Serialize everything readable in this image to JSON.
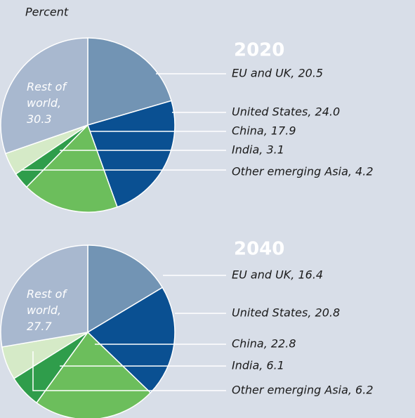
{
  "chart_data": [
    {
      "type": "pie",
      "title": "2020",
      "subtitle": "Percent",
      "categories": [
        "EU and UK",
        "United States",
        "China",
        "India",
        "Other emerging Asia",
        "Rest of world"
      ],
      "values": [
        20.5,
        24.0,
        17.9,
        3.1,
        4.2,
        30.3
      ],
      "value_labels": [
        "EU and UK, 20.5",
        "United States, 24.0",
        "China, 17.9",
        "India, 3.1",
        "Other emerging Asia, 4.2",
        "Rest of world, 30.3"
      ],
      "colors": [
        "#7294b4",
        "#0a5092",
        "#6cbe5c",
        "#2f9d4b",
        "#d5eac7",
        "#a8b8cf"
      ]
    },
    {
      "type": "pie",
      "title": "2040",
      "categories": [
        "EU and UK",
        "United States",
        "China",
        "India",
        "Other emerging Asia",
        "Rest of world"
      ],
      "values": [
        16.4,
        20.8,
        22.8,
        6.1,
        6.2,
        27.7
      ],
      "value_labels": [
        "EU and UK, 16.4",
        "United States, 20.8",
        "China, 22.8",
        "India, 6.1",
        "Other emerging Asia, 6.2",
        "Rest of world, 27.7"
      ],
      "colors": [
        "#7294b4",
        "#0a5092",
        "#6cbe5c",
        "#2f9d4b",
        "#d5eac7",
        "#a8b8cf"
      ]
    }
  ]
}
